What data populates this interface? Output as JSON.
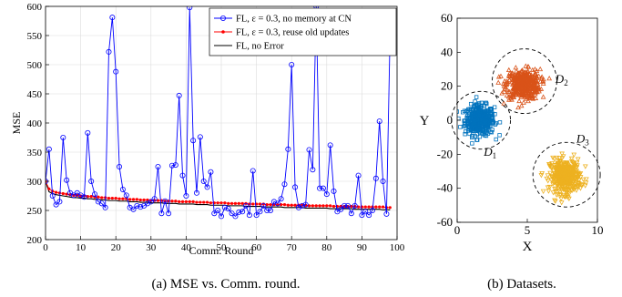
{
  "chart_data": [
    {
      "type": "line",
      "xlabel": "Comm. Round",
      "ylabel": "MSE",
      "xlim": [
        0,
        100
      ],
      "ylim": [
        200,
        600
      ],
      "xticks": [
        0,
        10,
        20,
        30,
        40,
        50,
        60,
        70,
        80,
        90,
        100
      ],
      "yticks": [
        200,
        250,
        300,
        350,
        400,
        450,
        500,
        550,
        600
      ],
      "grid": true,
      "legend": "top-right",
      "caption": "(a) MSE vs. Comm. round.",
      "series": [
        {
          "name": "FL, ε = 0.3, no memory at CN",
          "color": "#0000ff",
          "marker": "circle",
          "x": [
            0,
            1,
            2,
            3,
            4,
            5,
            6,
            7,
            8,
            9,
            10,
            11,
            12,
            13,
            14,
            15,
            16,
            17,
            18,
            19,
            20,
            21,
            22,
            23,
            24,
            25,
            26,
            27,
            28,
            29,
            30,
            31,
            32,
            33,
            34,
            35,
            36,
            37,
            38,
            39,
            40,
            41,
            42,
            43,
            44,
            45,
            46,
            47,
            48,
            49,
            50,
            51,
            52,
            53,
            54,
            55,
            56,
            57,
            58,
            59,
            60,
            61,
            62,
            63,
            64,
            65,
            66,
            67,
            68,
            69,
            70,
            71,
            72,
            73,
            74,
            75,
            76,
            77,
            78,
            79,
            80,
            81,
            82,
            83,
            84,
            85,
            86,
            87,
            88,
            89,
            90,
            91,
            92,
            93,
            94,
            95,
            96,
            97,
            98
          ],
          "values": [
            300,
            355,
            275,
            260,
            265,
            375,
            302,
            280,
            276,
            280,
            276,
            273,
            383,
            300,
            278,
            265,
            262,
            255,
            522,
            581,
            488,
            325,
            286,
            276,
            255,
            252,
            258,
            256,
            258,
            262,
            265,
            270,
            325,
            245,
            266,
            245,
            327,
            328,
            447,
            310,
            275,
            598,
            370,
            280,
            376,
            300,
            290,
            316,
            245,
            250,
            240,
            255,
            253,
            245,
            240,
            247,
            248,
            258,
            242,
            318,
            242,
            248,
            258,
            250,
            250,
            265,
            262,
            270,
            295,
            355,
            500,
            290,
            255,
            258,
            260,
            354,
            320,
            600,
            288,
            288,
            278,
            362,
            283,
            248,
            252,
            258,
            258,
            245,
            258,
            310,
            242,
            248,
            242,
            250,
            305,
            403,
            300,
            244,
            549
          ]
        },
        {
          "name": "FL, ε = 0.3, reuse old updates",
          "color": "#ff0000",
          "marker": "dot",
          "x": [
            0,
            1,
            2,
            3,
            4,
            5,
            6,
            7,
            8,
            9,
            10,
            11,
            12,
            13,
            14,
            15,
            16,
            17,
            18,
            19,
            20,
            21,
            22,
            23,
            24,
            25,
            26,
            27,
            28,
            29,
            30,
            31,
            32,
            33,
            34,
            35,
            36,
            37,
            38,
            39,
            40,
            41,
            42,
            43,
            44,
            45,
            46,
            47,
            48,
            49,
            50,
            51,
            52,
            53,
            54,
            55,
            56,
            57,
            58,
            59,
            60,
            61,
            62,
            63,
            64,
            65,
            66,
            67,
            68,
            69,
            70,
            71,
            72,
            73,
            74,
            75,
            76,
            77,
            78,
            79,
            80,
            81,
            82,
            83,
            84,
            85,
            86,
            87,
            88,
            89,
            90,
            91,
            92,
            93,
            94,
            95,
            96,
            97,
            98
          ],
          "values": [
            300,
            287,
            283,
            281,
            280,
            279,
            278,
            277,
            276,
            276,
            275,
            275,
            274,
            274,
            273,
            273,
            272,
            272,
            271,
            271,
            271,
            270,
            270,
            270,
            269,
            269,
            269,
            268,
            268,
            268,
            267,
            267,
            267,
            267,
            266,
            266,
            266,
            266,
            265,
            265,
            265,
            265,
            265,
            264,
            264,
            264,
            264,
            263,
            263,
            263,
            263,
            263,
            262,
            262,
            262,
            262,
            262,
            262,
            261,
            261,
            261,
            261,
            261,
            260,
            260,
            260,
            260,
            260,
            260,
            259,
            259,
            259,
            259,
            259,
            259,
            258,
            258,
            258,
            258,
            258,
            258,
            258,
            257,
            257,
            257,
            257,
            257,
            257,
            257,
            256,
            256,
            256,
            256,
            256,
            256,
            256,
            256,
            255,
            255
          ]
        },
        {
          "name": "FL, no Error",
          "color": "#000000",
          "marker": "none",
          "x": [
            0,
            1,
            2,
            3,
            4,
            5,
            6,
            7,
            8,
            9,
            10,
            11,
            12,
            13,
            14,
            15,
            16,
            17,
            18,
            19,
            20,
            21,
            22,
            23,
            24,
            25,
            26,
            27,
            28,
            29,
            30,
            31,
            32,
            33,
            34,
            35,
            36,
            37,
            38,
            39,
            40,
            41,
            42,
            43,
            44,
            45,
            46,
            47,
            48,
            49,
            50,
            51,
            52,
            53,
            54,
            55,
            56,
            57,
            58,
            59,
            60,
            61,
            62,
            63,
            64,
            65,
            66,
            67,
            68,
            69,
            70,
            71,
            72,
            73,
            74,
            75,
            76,
            77,
            78,
            79,
            80,
            81,
            82,
            83,
            84,
            85,
            86,
            87,
            88,
            89,
            90,
            91,
            92,
            93,
            94,
            95,
            96,
            97,
            98
          ],
          "values": [
            300,
            282,
            279,
            277,
            276,
            275,
            274,
            273,
            272,
            272,
            271,
            271,
            270,
            270,
            269,
            269,
            268,
            268,
            267,
            267,
            267,
            266,
            266,
            266,
            265,
            265,
            265,
            264,
            264,
            264,
            263,
            263,
            263,
            263,
            262,
            262,
            262,
            262,
            261,
            261,
            261,
            261,
            261,
            260,
            260,
            260,
            260,
            259,
            259,
            259,
            259,
            259,
            258,
            258,
            258,
            258,
            258,
            257,
            257,
            257,
            257,
            257,
            256,
            256,
            256,
            256,
            256,
            256,
            255,
            255,
            255,
            255,
            255,
            255,
            254,
            254,
            254,
            254,
            254,
            254,
            254,
            253,
            253,
            253,
            253,
            253,
            253,
            253,
            252,
            252,
            252,
            252,
            252,
            252,
            252,
            252,
            251,
            251,
            251
          ]
        }
      ]
    },
    {
      "type": "scatter",
      "xlabel": "X",
      "ylabel": "Y",
      "xlim": [
        0,
        10
      ],
      "ylim": [
        -60,
        60
      ],
      "xticks": [
        0,
        5,
        10
      ],
      "yticks": [
        -60,
        -40,
        -20,
        0,
        20,
        40,
        60
      ],
      "grid": false,
      "caption": "(b) Datasets.",
      "clusters": [
        {
          "label": "D",
          "sub": "1",
          "color": "#0072bd",
          "marker": "square",
          "center": [
            1.6,
            0
          ],
          "spread": [
            0.95,
            8
          ],
          "label_at": [
            1.9,
            -21
          ],
          "ellipse": {
            "center": [
              1.7,
              0
            ],
            "r": [
              2.1,
              17
            ]
          }
        },
        {
          "label": "D",
          "sub": "2",
          "color": "#d95319",
          "marker": "triangle-up",
          "center": [
            4.7,
            21
          ],
          "spread": [
            1.1,
            8
          ],
          "label_at": [
            7.0,
            22
          ],
          "ellipse": {
            "center": [
              4.8,
              23
            ],
            "r": [
              2.3,
              19
            ]
          }
        },
        {
          "label": "D",
          "sub": "3",
          "color": "#edb120",
          "marker": "triangle-down",
          "center": [
            7.7,
            -33
          ],
          "spread": [
            1.0,
            9
          ],
          "label_at": [
            8.5,
            -13
          ],
          "ellipse": {
            "center": [
              7.8,
              -32
            ],
            "r": [
              2.4,
              19
            ]
          }
        }
      ]
    }
  ]
}
